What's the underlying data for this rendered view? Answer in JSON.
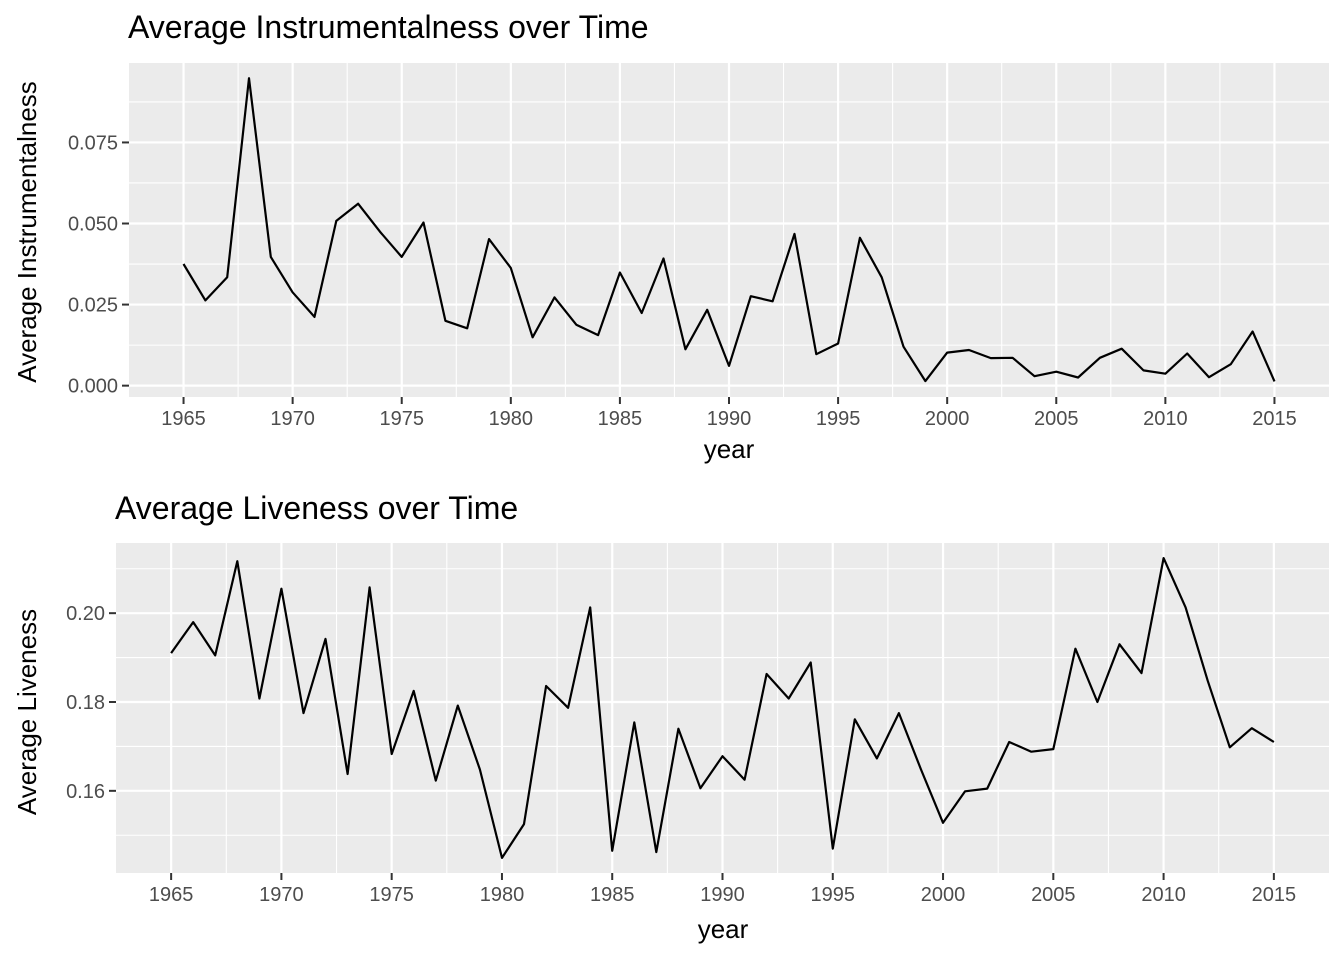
{
  "chart_data": [
    {
      "type": "line",
      "title": "Average Instrumentalness over Time",
      "xlabel": "year",
      "ylabel": "Average Instrumentalness",
      "xlim": [
        1962.5,
        2017.5
      ],
      "ylim": [
        -0.0035,
        0.0995
      ],
      "xticks": [
        1965,
        1970,
        1975,
        1980,
        1985,
        1990,
        1995,
        2000,
        2005,
        2010,
        2015
      ],
      "xtick_labels": [
        "1965",
        "1970",
        "1975",
        "1980",
        "1985",
        "1990",
        "1995",
        "2000",
        "2005",
        "2010",
        "2015"
      ],
      "yticks": [
        0,
        0.025,
        0.05,
        0.075
      ],
      "ytick_labels": [
        "0.000",
        "0.025",
        "0.050",
        "0.075"
      ],
      "grid": true,
      "series": [
        {
          "x": [
            1965,
            1966,
            1967,
            1968,
            1969,
            1970,
            1971,
            1972,
            1973,
            1974,
            1975,
            1976,
            1977,
            1978,
            1979,
            1980,
            1981,
            1982,
            1983,
            1984,
            1985,
            1986,
            1987,
            1988,
            1989,
            1990,
            1991,
            1992,
            1993,
            1994,
            1995,
            1996,
            1997,
            1998,
            1999,
            2000,
            2001,
            2002,
            2003,
            2004,
            2005,
            2006,
            2007,
            2008,
            2009,
            2010,
            2011,
            2012,
            2013,
            2014,
            2015
          ],
          "values": [
            0.0375,
            0.0263,
            0.0334,
            0.0948,
            0.0397,
            0.0288,
            0.0212,
            0.0508,
            0.0561,
            0.0475,
            0.0397,
            0.0503,
            0.02,
            0.0177,
            0.0452,
            0.0363,
            0.0149,
            0.0272,
            0.0188,
            0.0156,
            0.0349,
            0.0224,
            0.0392,
            0.0112,
            0.0234,
            0.0061,
            0.0276,
            0.026,
            0.0468,
            0.0097,
            0.013,
            0.0456,
            0.0334,
            0.012,
            0.0014,
            0.0102,
            0.011,
            0.0085,
            0.0086,
            0.0029,
            0.0043,
            0.0025,
            0.0086,
            0.0114,
            0.0047,
            0.0037,
            0.0099,
            0.0026,
            0.0066,
            0.0167,
            0.0013
          ]
        }
      ]
    },
    {
      "type": "line",
      "title": "Average Liveness over Time",
      "xlabel": "year",
      "ylabel": "Average Liveness",
      "xlim": [
        1962.5,
        2017.5
      ],
      "ylim": [
        0.1415,
        0.2158
      ],
      "xticks": [
        1965,
        1970,
        1975,
        1980,
        1985,
        1990,
        1995,
        2000,
        2005,
        2010,
        2015
      ],
      "xtick_labels": [
        "1965",
        "1970",
        "1975",
        "1980",
        "1985",
        "1990",
        "1995",
        "2000",
        "2005",
        "2010",
        "2015"
      ],
      "yticks": [
        0.16,
        0.18,
        0.2
      ],
      "ytick_labels": [
        "0.16",
        "0.18",
        "0.20"
      ],
      "grid": true,
      "series": [
        {
          "x": [
            1965,
            1966,
            1967,
            1968,
            1969,
            1970,
            1971,
            1972,
            1973,
            1974,
            1975,
            1976,
            1977,
            1978,
            1979,
            1980,
            1981,
            1982,
            1983,
            1984,
            1985,
            1986,
            1987,
            1988,
            1989,
            1990,
            1991,
            1992,
            1993,
            1994,
            1995,
            1996,
            1997,
            1998,
            1999,
            2000,
            2001,
            2002,
            2003,
            2004,
            2005,
            2006,
            2007,
            2008,
            2009,
            2010,
            2011,
            2012,
            2013,
            2014,
            2015
          ],
          "values": [
            0.191,
            0.198,
            0.1905,
            0.2117,
            0.1808,
            0.2055,
            0.1775,
            0.1942,
            0.1638,
            0.2058,
            0.1683,
            0.1825,
            0.1623,
            0.1792,
            0.1648,
            0.1449,
            0.1525,
            0.1836,
            0.1787,
            0.2013,
            0.1465,
            0.1754,
            0.1462,
            0.174,
            0.1606,
            0.1678,
            0.1625,
            0.1863,
            0.1808,
            0.1889,
            0.147,
            0.1761,
            0.1673,
            0.1775,
            0.1648,
            0.1528,
            0.1599,
            0.1605,
            0.171,
            0.1688,
            0.1694,
            0.192,
            0.18,
            0.193,
            0.1865,
            0.2124,
            0.2013,
            0.1848,
            0.1698,
            0.1741,
            0.171
          ]
        }
      ]
    }
  ]
}
